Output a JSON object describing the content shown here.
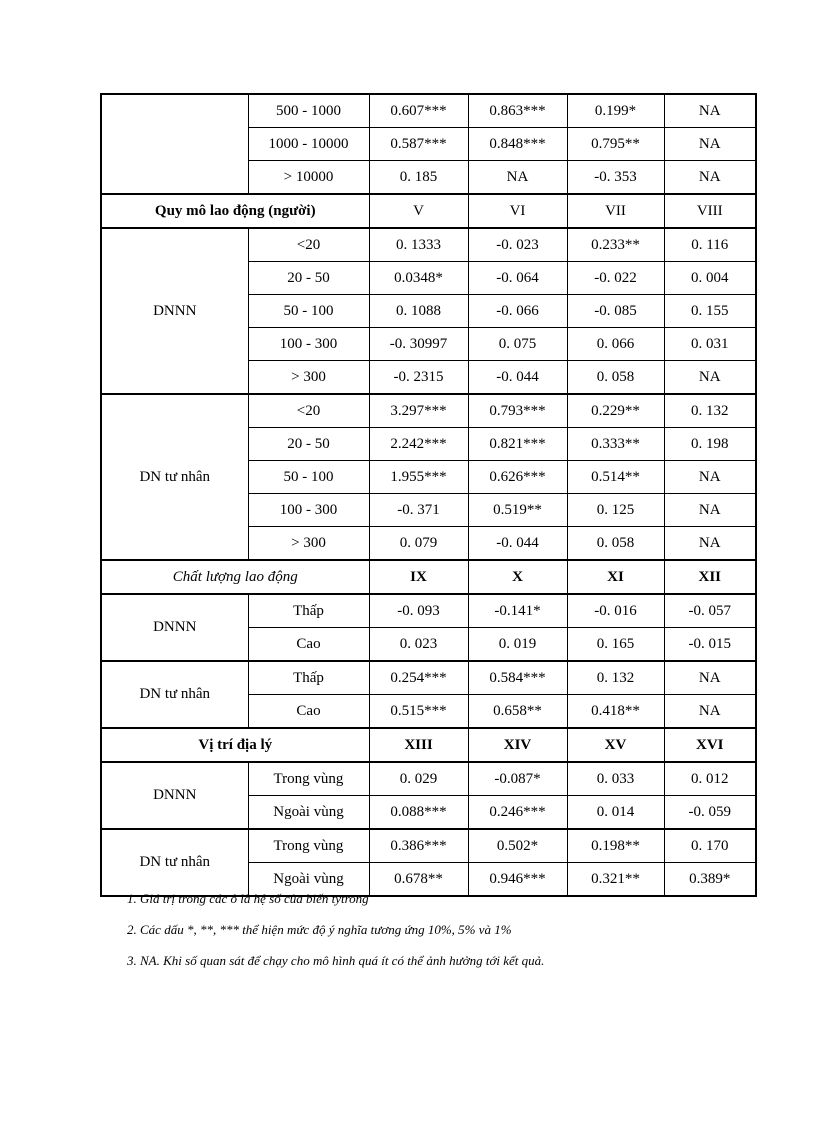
{
  "table": {
    "sections": [
      {
        "kind": "rows",
        "group": "",
        "rows": [
          {
            "label": "500 - 1000",
            "values": [
              "0.607***",
              "0.863***",
              "0.199*",
              "NA"
            ]
          },
          {
            "label": "1000 - 10000",
            "values": [
              "0.587***",
              "0.848***",
              "0.795**",
              "NA"
            ]
          },
          {
            "label": "> 10000",
            "values": [
              "0. 185",
              "NA",
              "-0. 353",
              "NA"
            ]
          }
        ]
      },
      {
        "kind": "header",
        "title": "Quy mô lao động (người)",
        "title_style": "bold",
        "cols": [
          "V",
          "VI",
          "VII",
          "VIII"
        ],
        "cols_bold": false
      },
      {
        "kind": "rows",
        "group": "DNNN",
        "rows": [
          {
            "label": "<20",
            "values": [
              "0. 1333",
              "-0. 023",
              "0.233**",
              "0. 116"
            ]
          },
          {
            "label": "20 - 50",
            "values": [
              "0.0348*",
              "-0. 064",
              "-0. 022",
              "0. 004"
            ]
          },
          {
            "label": "50 - 100",
            "values": [
              "0. 1088",
              "-0. 066",
              "-0. 085",
              "0. 155"
            ]
          },
          {
            "label": "100 - 300",
            "values": [
              "-0. 30997",
              "0. 075",
              "0. 066",
              "0. 031"
            ]
          },
          {
            "label": "> 300",
            "values": [
              "-0. 2315",
              "-0. 044",
              "0. 058",
              "NA"
            ]
          }
        ]
      },
      {
        "kind": "rows",
        "group": "DN tư nhân",
        "rows": [
          {
            "label": "<20",
            "values": [
              "3.297***",
              "0.793***",
              "0.229**",
              "0. 132"
            ]
          },
          {
            "label": "20 - 50",
            "values": [
              "2.242***",
              "0.821***",
              "0.333**",
              "0. 198"
            ]
          },
          {
            "label": "50 - 100",
            "values": [
              "1.955***",
              "0.626***",
              "0.514**",
              "NA"
            ]
          },
          {
            "label": "100 - 300",
            "values": [
              "-0. 371",
              "0.519**",
              "0. 125",
              "NA"
            ]
          },
          {
            "label": "> 300",
            "values": [
              "0. 079",
              "-0. 044",
              "0. 058",
              "NA"
            ]
          }
        ]
      },
      {
        "kind": "header",
        "title": "Chất lượng lao động",
        "title_style": "italic",
        "cols": [
          "IX",
          "X",
          "XI",
          "XII"
        ],
        "cols_bold": true
      },
      {
        "kind": "rows",
        "group": "DNNN",
        "rows": [
          {
            "label": "Thấp",
            "values": [
              "-0. 093",
              "-0.141*",
              "-0. 016",
              "-0. 057"
            ]
          },
          {
            "label": "Cao",
            "values": [
              "0. 023",
              "0. 019",
              "0. 165",
              "-0. 015"
            ]
          }
        ]
      },
      {
        "kind": "rows",
        "group": "DN tư nhân",
        "rows": [
          {
            "label": "Thấp",
            "values": [
              "0.254***",
              "0.584***",
              "0. 132",
              "NA"
            ]
          },
          {
            "label": "Cao",
            "values": [
              "0.515***",
              "0.658**",
              "0.418**",
              "NA"
            ]
          }
        ]
      },
      {
        "kind": "header",
        "title": "Vị trí địa lý",
        "title_style": "bold",
        "cols": [
          "XIII",
          "XIV",
          "XV",
          "XVI"
        ],
        "cols_bold": true
      },
      {
        "kind": "rows",
        "group": "DNNN",
        "rows": [
          {
            "label": "Trong vùng",
            "values": [
              "0. 029",
              "-0.087*",
              "0. 033",
              "0. 012"
            ]
          },
          {
            "label": "Ngoài vùng",
            "values": [
              "0.088***",
              "0.246***",
              "0. 014",
              "-0. 059"
            ]
          }
        ]
      },
      {
        "kind": "rows",
        "group": "DN tư nhân",
        "rows": [
          {
            "label": "Trong vùng",
            "values": [
              "0.386***",
              "0.502*",
              "0.198**",
              "0. 170"
            ]
          },
          {
            "label": "Ngoài vùng",
            "values": [
              "0.678**",
              "0.946***",
              "0.321**",
              "0.389*"
            ]
          }
        ]
      }
    ]
  },
  "footnotes": [
    "1. Giá trị trong các ô là hệ số của biến tytrong",
    "2. Các dấu *, **, *** thể hiện mức độ ý nghĩa tương ứng 10%, 5% và 1%",
    "3. NA. Khi số quan sát để chạy cho mô hình quá ít có thể ảnh hưởng tới kết quả."
  ]
}
